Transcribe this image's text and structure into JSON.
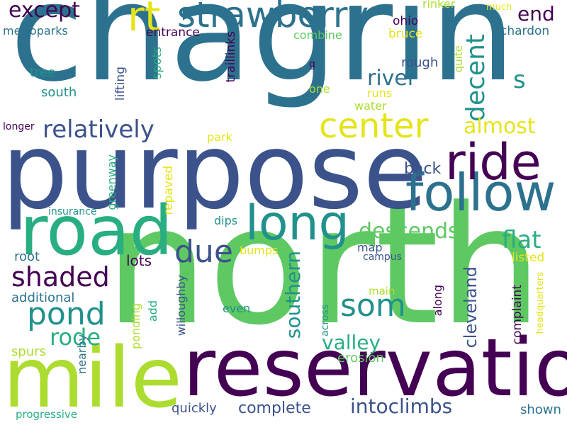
{
  "palette": {
    "dark_purple": "#440154",
    "indigo": "#3b528b",
    "teal_blue": "#2c728e",
    "teal": "#21918c",
    "green_teal": "#28ae80",
    "green": "#5ec962",
    "yellow_green": "#addc30",
    "yellow": "#e5e419",
    "background": "#ffffff"
  },
  "words": [
    {
      "text": "chagrin",
      "color": "#2c728e",
      "vertical": false
    },
    {
      "text": "north",
      "color": "#5ec962",
      "vertical": false
    },
    {
      "text": "purpose",
      "color": "#3b528b",
      "vertical": false
    },
    {
      "text": "reservation",
      "color": "#440154",
      "vertical": false
    },
    {
      "text": "mile",
      "color": "#addc30",
      "vertical": false
    },
    {
      "text": "road",
      "color": "#28ae80",
      "vertical": false
    },
    {
      "text": "follow",
      "color": "#2c728e",
      "vertical": false
    },
    {
      "text": "ride",
      "color": "#440154",
      "vertical": false
    },
    {
      "text": "long",
      "color": "#21918c",
      "vertical": false
    },
    {
      "text": "strawberry",
      "color": "#2c728e",
      "vertical": false
    },
    {
      "text": "center",
      "color": "#e5e419",
      "vertical": false
    },
    {
      "text": "relatively",
      "color": "#3b528b",
      "vertical": false
    },
    {
      "text": "due",
      "color": "#3b528b",
      "vertical": false
    },
    {
      "text": "pond",
      "color": "#21918c",
      "vertical": false
    },
    {
      "text": "som",
      "color": "#21918c",
      "vertical": false
    },
    {
      "text": "rt",
      "color": "#e5e419",
      "vertical": false
    },
    {
      "text": "shaded",
      "color": "#440154",
      "vertical": false
    },
    {
      "text": "descends",
      "color": "#5ec962",
      "vertical": false
    },
    {
      "text": "intoclimbs",
      "color": "#3b528b",
      "vertical": false
    },
    {
      "text": "valley",
      "color": "#28ae80",
      "vertical": false
    },
    {
      "text": "decent",
      "color": "#21918c",
      "vertical": true
    },
    {
      "text": "river",
      "color": "#2c728e",
      "vertical": false
    },
    {
      "text": "except",
      "color": "#440154",
      "vertical": false
    },
    {
      "text": "southern",
      "color": "#21918c",
      "vertical": true
    },
    {
      "text": "almost",
      "color": "#e5e419",
      "vertical": false
    },
    {
      "text": "flat",
      "color": "#28ae80",
      "vertical": false
    },
    {
      "text": "rode",
      "color": "#28ae80",
      "vertical": false
    },
    {
      "text": "end",
      "color": "#440154",
      "vertical": false
    },
    {
      "text": "cleveland",
      "color": "#3b528b",
      "vertical": true
    },
    {
      "text": "s",
      "color": "#21918c",
      "vertical": false
    },
    {
      "text": "complete",
      "color": "#3b528b",
      "vertical": false
    },
    {
      "text": "back",
      "color": "#3b528b",
      "vertical": false
    },
    {
      "text": "lots",
      "color": "#440154",
      "vertical": false
    },
    {
      "text": "root",
      "color": "#2c728e",
      "vertical": false
    },
    {
      "text": "additional",
      "color": "#2c728e",
      "vertical": false
    },
    {
      "text": "spurs",
      "color": "#addc30",
      "vertical": false
    },
    {
      "text": "quickly",
      "color": "#3b528b",
      "vertical": false
    },
    {
      "text": "erosion",
      "color": "#5ec962",
      "vertical": false
    },
    {
      "text": "shown",
      "color": "#2c728e",
      "vertical": false
    },
    {
      "text": "progressive",
      "color": "#28ae80",
      "vertical": false
    },
    {
      "text": "metroparks",
      "color": "#2c728e",
      "vertical": false
    },
    {
      "text": "entrance",
      "color": "#440154",
      "vertical": false
    },
    {
      "text": "combine",
      "color": "#5ec962",
      "vertical": false
    },
    {
      "text": "ohio",
      "color": "#440154",
      "vertical": false
    },
    {
      "text": "bruce",
      "color": "#e5e419",
      "vertical": false
    },
    {
      "text": "rinker",
      "color": "#addc30",
      "vertical": false
    },
    {
      "text": "much",
      "color": "#e5e419",
      "vertical": false
    },
    {
      "text": "chardon",
      "color": "#2c728e",
      "vertical": false
    },
    {
      "text": "tree",
      "color": "#21918c",
      "vertical": false
    },
    {
      "text": "south",
      "color": "#21918c",
      "vertical": false
    },
    {
      "text": "spots",
      "color": "#28ae80",
      "vertical": true
    },
    {
      "text": "lifting",
      "color": "#3b528b",
      "vertical": true
    },
    {
      "text": "traillinks",
      "color": "#440154",
      "vertical": true
    },
    {
      "text": "g",
      "color": "#440154",
      "vertical": false
    },
    {
      "text": "one",
      "color": "#addc30",
      "vertical": false
    },
    {
      "text": "rough",
      "color": "#3b528b",
      "vertical": false
    },
    {
      "text": "quite",
      "color": "#addc30",
      "vertical": true
    },
    {
      "text": "runs",
      "color": "#e5e419",
      "vertical": false
    },
    {
      "text": "water",
      "color": "#addc30",
      "vertical": false
    },
    {
      "text": "longer",
      "color": "#440154",
      "vertical": false
    },
    {
      "text": "park",
      "color": "#e5e419",
      "vertical": false
    },
    {
      "text": "greenway",
      "color": "#28ae80",
      "vertical": true
    },
    {
      "text": "insurance",
      "color": "#21918c",
      "vertical": false
    },
    {
      "text": "repaved",
      "color": "#e5e419",
      "vertical": true
    },
    {
      "text": "dips",
      "color": "#21918c",
      "vertical": false
    },
    {
      "text": "bumps",
      "color": "#e5e419",
      "vertical": false
    },
    {
      "text": "map",
      "color": "#3b528b",
      "vertical": false
    },
    {
      "text": "campus",
      "color": "#3b528b",
      "vertical": false
    },
    {
      "text": "listed",
      "color": "#e5e419",
      "vertical": false
    },
    {
      "text": "headquarters",
      "color": "#e5e419",
      "vertical": true
    },
    {
      "text": "main",
      "color": "#addc30",
      "vertical": false
    },
    {
      "text": "complaint",
      "color": "#440154",
      "vertical": true
    },
    {
      "text": "along",
      "color": "#440154",
      "vertical": true
    },
    {
      "text": "across",
      "color": "#21918c",
      "vertical": true
    },
    {
      "text": "even",
      "color": "#21918c",
      "vertical": false
    },
    {
      "text": "add",
      "color": "#28ae80",
      "vertical": true
    },
    {
      "text": "willoughby",
      "color": "#3b528b",
      "vertical": true
    },
    {
      "text": "ponding",
      "color": "#addc30",
      "vertical": true
    },
    {
      "text": "nearby",
      "color": "#2c728e",
      "vertical": true
    }
  ]
}
